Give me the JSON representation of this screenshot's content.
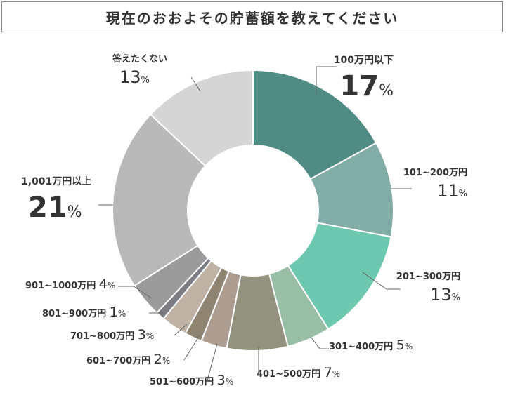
{
  "title": "現在のおおよその貯蓄額を教えてください",
  "chart_data": {
    "type": "pie",
    "donut": true,
    "title": "現在のおおよその貯蓄額を教えてください",
    "legend": "none",
    "slices": [
      {
        "label": "100万円以下",
        "value": 17,
        "pct": "17",
        "unit": "%",
        "color": "#508c84"
      },
      {
        "label": "101~200万円",
        "value": 11,
        "pct": "11",
        "unit": "%",
        "color": "#82ada7"
      },
      {
        "label": "201~300万円",
        "value": 13,
        "pct": "13",
        "unit": "%",
        "color": "#6ec8b0"
      },
      {
        "label": "301~400万円",
        "value": 5,
        "pct": "5",
        "unit": "%",
        "color": "#98bea6"
      },
      {
        "label": "401~500万円",
        "value": 7,
        "pct": "7",
        "unit": "%",
        "color": "#92927e"
      },
      {
        "label": "501~600万円",
        "value": 3,
        "pct": "3",
        "unit": "%",
        "color": "#ad9c90"
      },
      {
        "label": "601~700万円",
        "value": 2,
        "pct": "2",
        "unit": "%",
        "color": "#8f8472"
      },
      {
        "label": "701~800万円",
        "value": 3,
        "pct": "3",
        "unit": "%",
        "color": "#bfb2a4"
      },
      {
        "label": "801~900万円",
        "value": 1,
        "pct": "1",
        "unit": "%",
        "color": "#7c7c84"
      },
      {
        "label": "901~1000万円",
        "value": 4,
        "pct": "4",
        "unit": "%",
        "color": "#9b9b9b"
      },
      {
        "label": "1,001万円以上",
        "value": 21,
        "pct": "21",
        "unit": "%",
        "color": "#b9b9b9"
      },
      {
        "label": "答えたくない",
        "value": 13,
        "pct": "13",
        "unit": "%",
        "color": "#d5d5d5"
      }
    ]
  }
}
